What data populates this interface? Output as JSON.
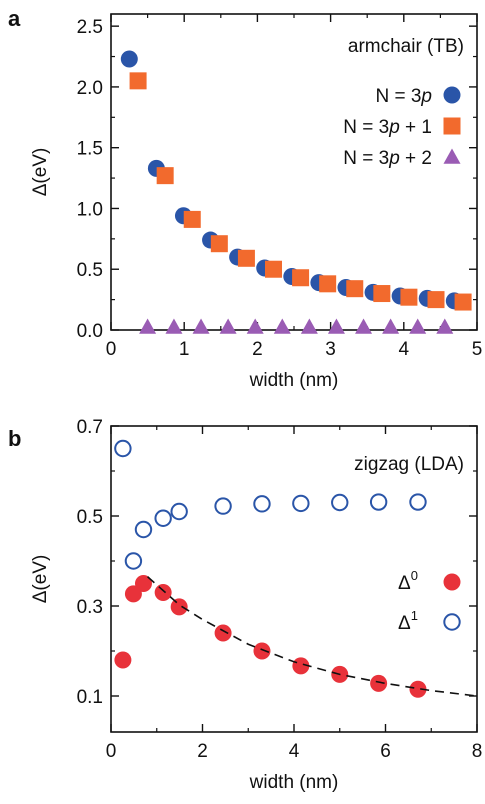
{
  "chart_data": [
    {
      "panel_label": "a",
      "type": "scatter",
      "title": "armchair (TB)",
      "xlabel": "width (nm)",
      "ylabel": "Δ(eV)",
      "xlim": [
        0,
        5
      ],
      "ylim": [
        0,
        2.6
      ],
      "xticks": [
        "0",
        "1",
        "2",
        "3",
        "4",
        "5"
      ],
      "yticks": [
        "0.0",
        "0.5",
        "1.0",
        "1.5",
        "2.0",
        "2.5"
      ],
      "legend_position": "top-right",
      "series": [
        {
          "name": "N = 3p",
          "name_parts": [
            "N = 3",
            "p",
            ""
          ],
          "marker": "circle-filled",
          "color": "#2a55a8",
          "x": [
            0.25,
            0.62,
            0.99,
            1.36,
            1.73,
            2.1,
            2.47,
            2.84,
            3.21,
            3.58,
            3.95,
            4.32,
            4.69
          ],
          "y": [
            2.23,
            1.33,
            0.94,
            0.74,
            0.6,
            0.51,
            0.44,
            0.39,
            0.35,
            0.31,
            0.28,
            0.26,
            0.24
          ]
        },
        {
          "name": "N = 3p + 1",
          "name_parts": [
            "N = 3",
            "p",
            " + 1"
          ],
          "marker": "square-filled",
          "color": "#f26a2d",
          "x": [
            0.37,
            0.74,
            1.11,
            1.48,
            1.85,
            2.22,
            2.59,
            2.96,
            3.33,
            3.7,
            4.07,
            4.44,
            4.81
          ],
          "y": [
            2.05,
            1.27,
            0.91,
            0.71,
            0.59,
            0.5,
            0.43,
            0.38,
            0.34,
            0.3,
            0.27,
            0.25,
            0.23
          ]
        },
        {
          "name": "N = 3p + 2",
          "name_parts": [
            "N = 3",
            "p",
            " + 2"
          ],
          "marker": "triangle-filled",
          "color": "#9a5cb4",
          "x": [
            0.5,
            0.86,
            1.23,
            1.6,
            1.97,
            2.34,
            2.71,
            3.08,
            3.45,
            3.82,
            4.19,
            4.56
          ],
          "y": [
            0,
            0,
            0,
            0,
            0,
            0,
            0,
            0,
            0,
            0,
            0,
            0
          ]
        }
      ]
    },
    {
      "panel_label": "b",
      "type": "scatter",
      "title": "zigzag (LDA)",
      "xlabel": "width (nm)",
      "ylabel": "Δ(eV)",
      "xlim": [
        0,
        8
      ],
      "ylim": [
        0.02,
        0.7
      ],
      "xticks": [
        "0",
        "2",
        "4",
        "6",
        "8"
      ],
      "yticks": [
        "0.1",
        "0.3",
        "0.5",
        "0.7"
      ],
      "legend_position": "right",
      "series": [
        {
          "name": "Δ0",
          "name_parts": [
            "Δ",
            "0"
          ],
          "marker": "circle-filled",
          "color": "#e8323a",
          "x": [
            0.26,
            0.49,
            0.71,
            1.14,
            1.49,
            2.45,
            3.3,
            4.15,
            5.0,
            5.85,
            6.71
          ],
          "y": [
            0.18,
            0.327,
            0.35,
            0.33,
            0.298,
            0.24,
            0.2,
            0.167,
            0.148,
            0.128,
            0.115
          ]
        },
        {
          "name": "Δ1",
          "name_parts": [
            "Δ",
            "1"
          ],
          "marker": "circle-open",
          "color": "#2a55a8",
          "x": [
            0.26,
            0.49,
            0.71,
            1.14,
            1.49,
            2.45,
            3.3,
            4.15,
            5.0,
            5.85,
            6.71
          ],
          "y": [
            0.65,
            0.4,
            0.47,
            0.495,
            0.51,
            0.522,
            0.527,
            0.528,
            0.53,
            0.531,
            0.531
          ]
        },
        {
          "marker": "dashed-fit",
          "color": "#111111",
          "x": [
            0.8,
            1.5,
            2.0,
            3.0,
            4.0,
            5.0,
            6.0,
            7.0,
            8.0
          ],
          "y": [
            0.365,
            0.302,
            0.27,
            0.215,
            0.176,
            0.148,
            0.128,
            0.112,
            0.1
          ]
        }
      ]
    }
  ]
}
